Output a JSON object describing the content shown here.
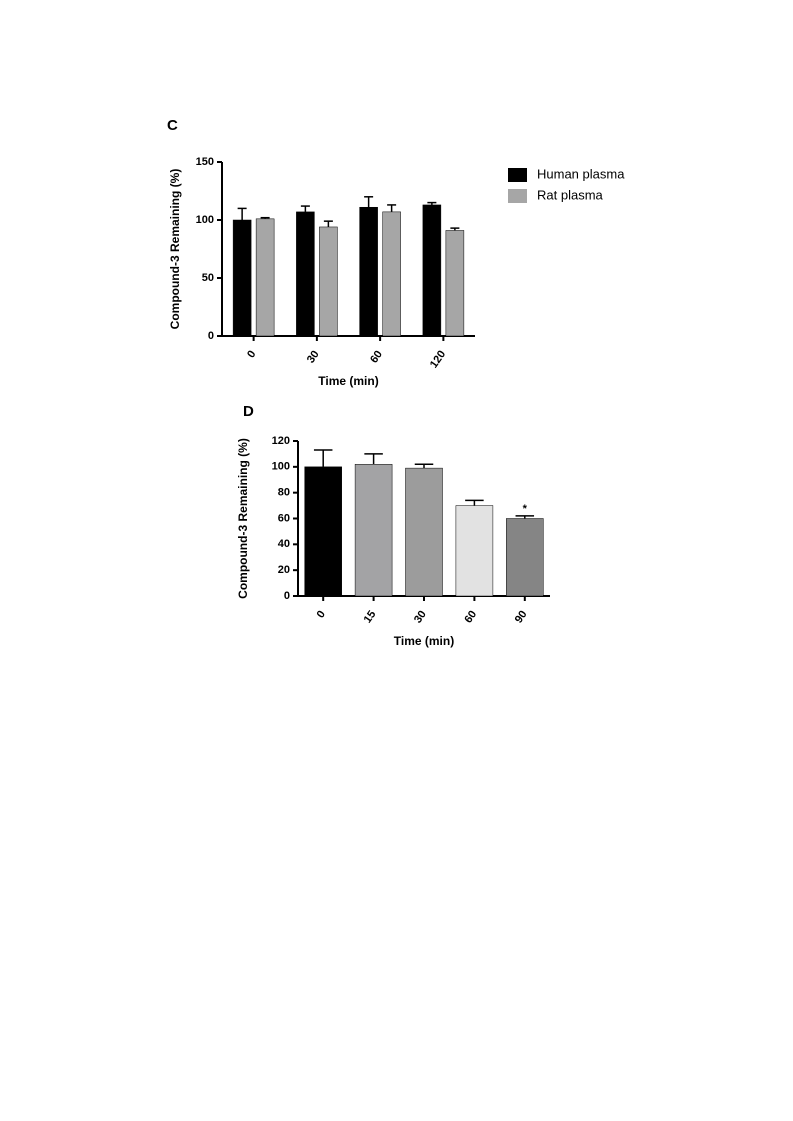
{
  "chart_data": [
    {
      "type": "bar",
      "panel": "C",
      "ylabel": "Compound-3 Remaining (%)",
      "xlabel": "Time (min)",
      "categories": [
        "0",
        "30",
        "60",
        "120"
      ],
      "series": [
        {
          "name": "Human plasma",
          "color": "#000000",
          "values": [
            100,
            107,
            111,
            113
          ],
          "errors": [
            10,
            5,
            9,
            2
          ]
        },
        {
          "name": "Rat plasma",
          "color": "#a6a6a6",
          "values": [
            101,
            94,
            107,
            91
          ],
          "errors": [
            1,
            5,
            6,
            2
          ]
        }
      ],
      "ylim": [
        0,
        150
      ],
      "yticks": [
        0,
        50,
        100,
        150
      ],
      "legend": "right"
    },
    {
      "type": "bar",
      "panel": "D",
      "ylabel": "Compound-3 Remaining (%)",
      "xlabel": "Time (min)",
      "categories": [
        "0",
        "15",
        "30",
        "60",
        "90"
      ],
      "values": [
        100,
        102,
        99,
        70,
        60
      ],
      "errors": [
        13,
        8,
        3,
        4,
        2
      ],
      "colors": [
        "#000000",
        "#a3a3a5",
        "#9c9c9c",
        "#e2e2e2",
        "#858585"
      ],
      "ylim": [
        0,
        120
      ],
      "yticks": [
        0,
        20,
        40,
        60,
        80,
        100,
        120
      ],
      "annotations": [
        {
          "text": "*",
          "x": "90"
        }
      ]
    }
  ]
}
